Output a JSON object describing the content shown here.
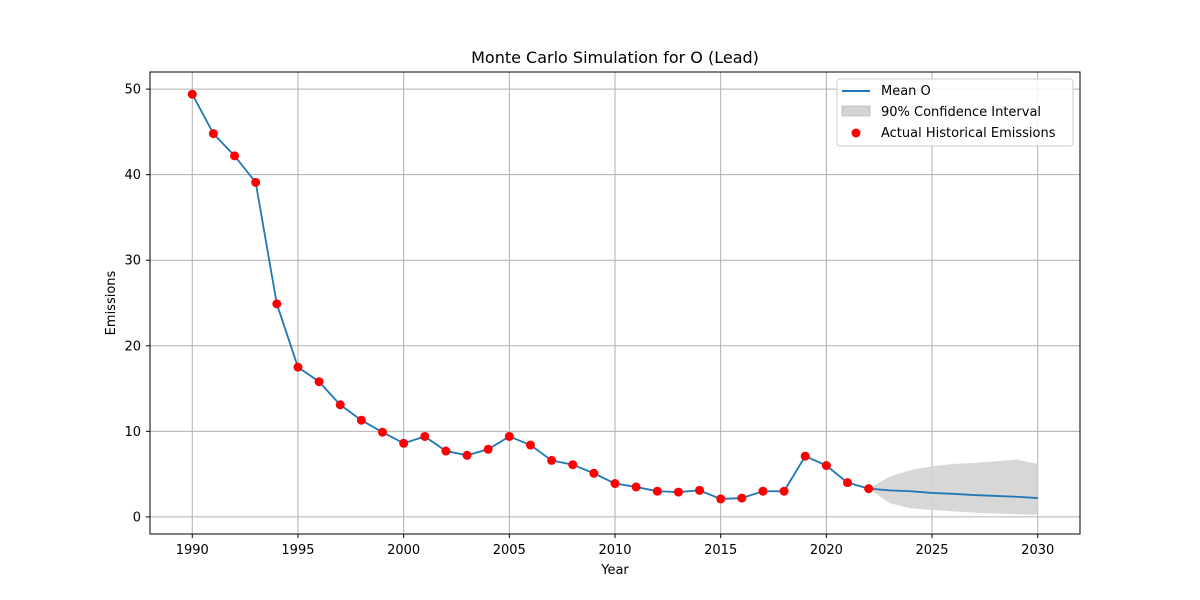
{
  "chart_data": {
    "type": "line",
    "title": "Monte Carlo Simulation for O (Lead)",
    "xlabel": "Year",
    "ylabel": "Emissions",
    "xlim": [
      1988,
      2032
    ],
    "ylim": [
      -2,
      52
    ],
    "xticks": [
      1990,
      1995,
      2000,
      2005,
      2010,
      2015,
      2020,
      2025,
      2030
    ],
    "yticks": [
      0,
      10,
      20,
      30,
      40,
      50
    ],
    "grid": true,
    "legend_position": "top-right",
    "colors": {
      "mean_line": "#1f77b4",
      "historical": "#ff0000",
      "confidence_fill": "#d3d3d3",
      "grid": "#b0b0b0"
    },
    "series": [
      {
        "name": "Mean O",
        "kind": "line",
        "x": [
          1990,
          1991,
          1992,
          1993,
          1994,
          1995,
          1996,
          1997,
          1998,
          1999,
          2000,
          2001,
          2002,
          2003,
          2004,
          2005,
          2006,
          2007,
          2008,
          2009,
          2010,
          2011,
          2012,
          2013,
          2014,
          2015,
          2016,
          2017,
          2018,
          2019,
          2020,
          2021,
          2022,
          2023,
          2024,
          2025,
          2026,
          2027,
          2028,
          2029,
          2030
        ],
        "y": [
          49.4,
          44.8,
          42.2,
          39.1,
          24.9,
          17.5,
          15.8,
          13.1,
          11.3,
          9.9,
          8.6,
          9.4,
          7.7,
          7.2,
          7.9,
          9.4,
          8.4,
          6.6,
          6.1,
          5.1,
          3.9,
          3.5,
          3.0,
          2.9,
          3.1,
          2.1,
          2.2,
          3.0,
          3.0,
          7.1,
          6.0,
          4.0,
          3.3,
          3.1,
          3.0,
          2.8,
          2.7,
          2.55,
          2.45,
          2.35,
          2.2
        ]
      },
      {
        "name": "90% Confidence Interval",
        "kind": "band",
        "x": [
          2022,
          2023,
          2024,
          2025,
          2026,
          2027,
          2028,
          2029,
          2030
        ],
        "lower": [
          3.3,
          1.6,
          1.0,
          0.8,
          0.65,
          0.5,
          0.4,
          0.3,
          0.25
        ],
        "upper": [
          3.3,
          4.7,
          5.5,
          5.9,
          6.2,
          6.3,
          6.5,
          6.7,
          6.2
        ]
      },
      {
        "name": "Actual Historical Emissions",
        "kind": "scatter",
        "x": [
          1990,
          1991,
          1992,
          1993,
          1994,
          1995,
          1996,
          1997,
          1998,
          1999,
          2000,
          2001,
          2002,
          2003,
          2004,
          2005,
          2006,
          2007,
          2008,
          2009,
          2010,
          2011,
          2012,
          2013,
          2014,
          2015,
          2016,
          2017,
          2018,
          2019,
          2020,
          2021,
          2022
        ],
        "y": [
          49.4,
          44.8,
          42.2,
          39.1,
          24.9,
          17.5,
          15.8,
          13.1,
          11.3,
          9.9,
          8.6,
          9.4,
          7.7,
          7.2,
          7.9,
          9.4,
          8.4,
          6.6,
          6.1,
          5.1,
          3.9,
          3.5,
          3.0,
          2.9,
          3.1,
          2.1,
          2.2,
          3.0,
          3.0,
          7.1,
          6.0,
          4.0,
          3.3
        ]
      }
    ]
  }
}
